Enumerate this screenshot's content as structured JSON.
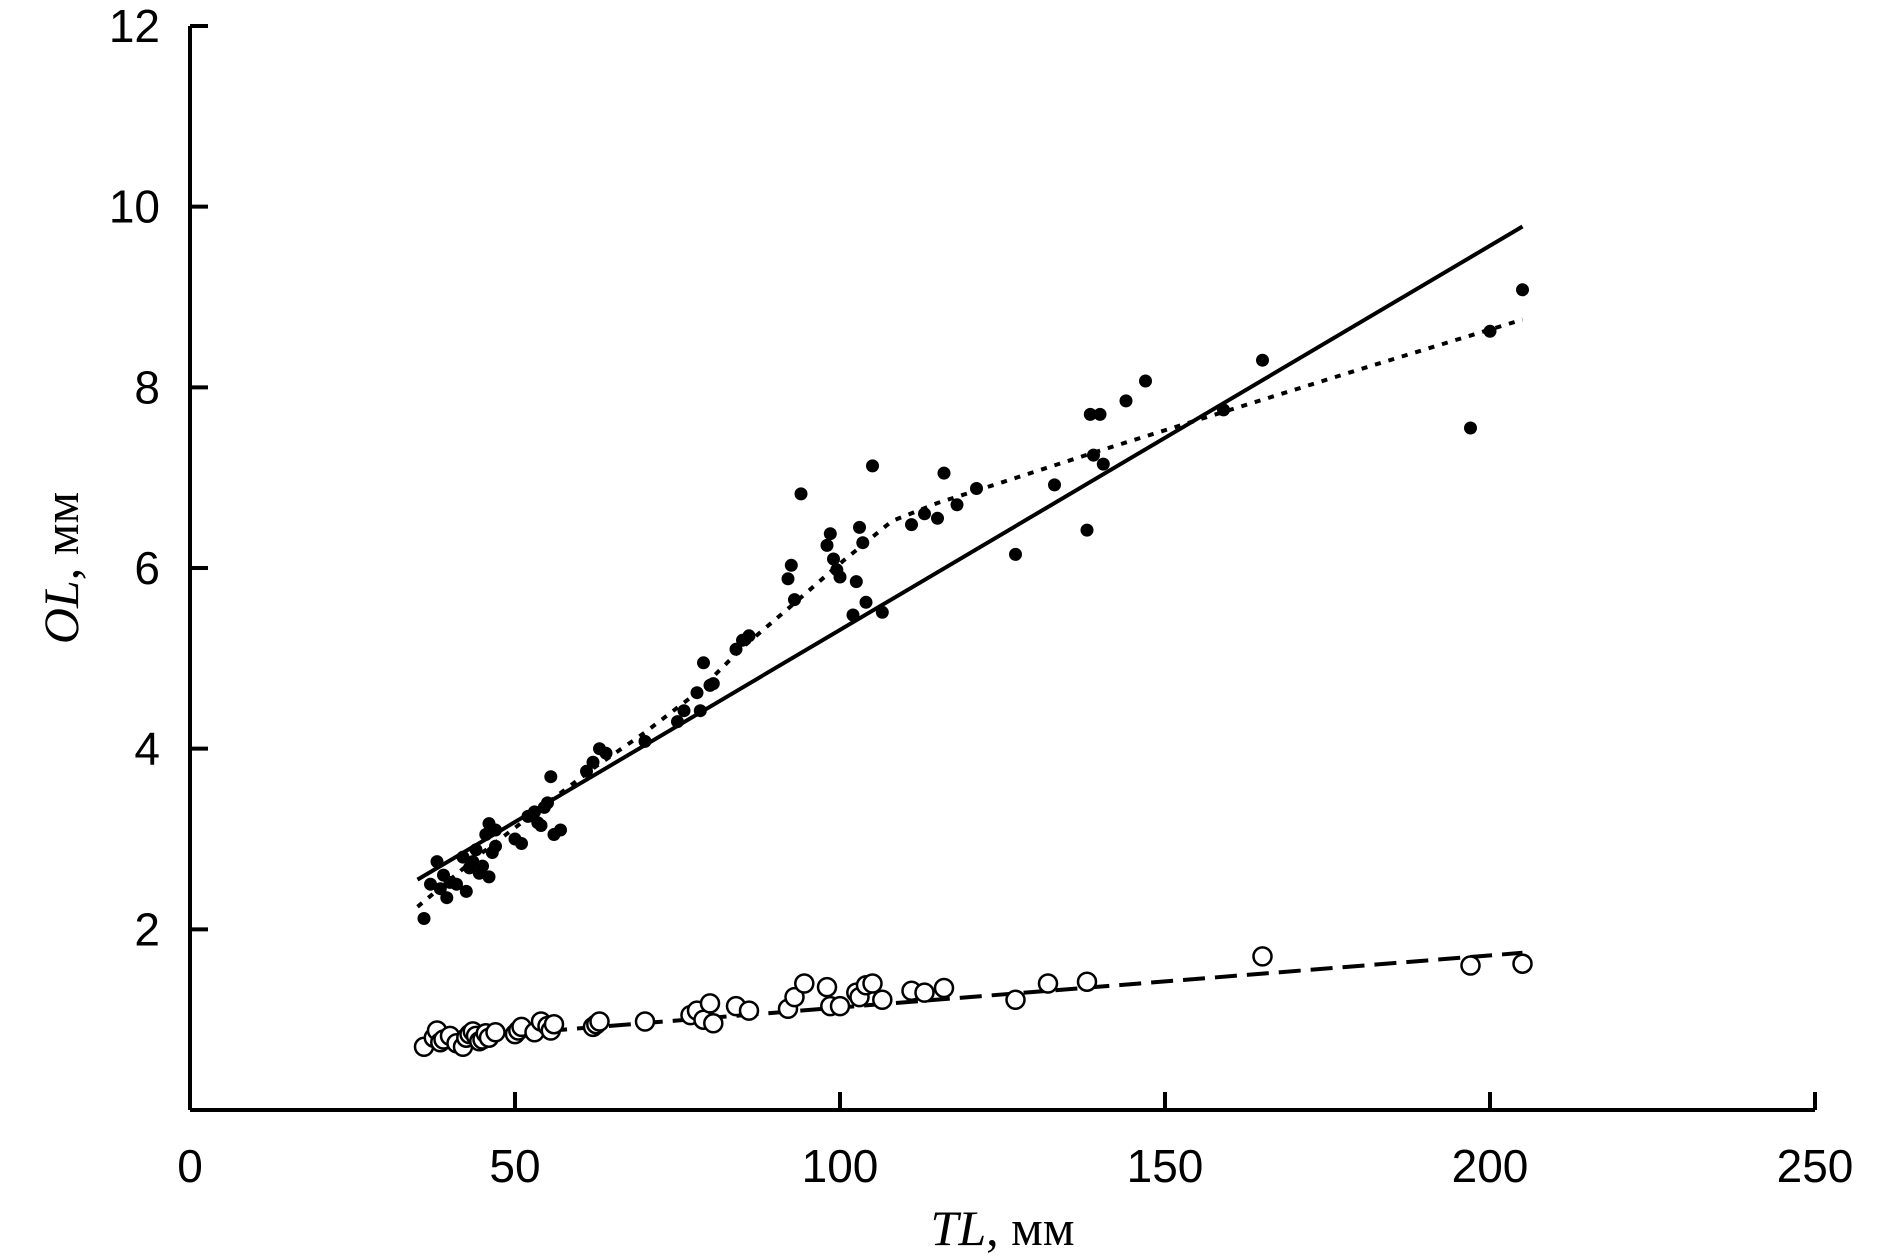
{
  "chart_data": {
    "type": "scatter",
    "xlabel": {
      "var": "TL",
      "unit": ", мм"
    },
    "ylabel": {
      "var": "OL",
      "unit": ", мм"
    },
    "xlim": [
      0,
      250
    ],
    "ylim": [
      0,
      12
    ],
    "xticks": [
      0,
      50,
      100,
      150,
      200,
      250
    ],
    "yticks": [
      2,
      4,
      6,
      8,
      10,
      12
    ],
    "grid": false,
    "series": [
      {
        "marker": "filled-circle",
        "x": [
          36,
          37,
          38,
          38.5,
          39,
          39.5,
          40,
          41,
          42,
          42.5,
          43,
          43.5,
          44,
          44.5,
          45,
          45.5,
          46,
          46,
          46.5,
          47,
          47,
          50,
          51,
          52,
          53,
          53.5,
          54,
          54.5,
          55,
          55.5,
          56,
          57,
          61,
          62,
          63,
          64,
          70,
          75,
          76,
          78,
          78.5,
          79,
          80,
          80.5,
          84,
          85,
          86,
          92,
          92.5,
          93,
          94,
          98,
          98.5,
          99,
          99.5,
          100,
          102,
          102.5,
          103,
          103.5,
          104,
          105,
          106.5,
          111,
          113,
          115,
          116,
          118,
          121,
          127,
          133,
          138,
          138.5,
          139,
          140,
          140.5,
          144,
          147,
          159,
          165,
          197,
          200,
          205
        ],
        "y": [
          2.12,
          2.5,
          2.75,
          2.45,
          2.6,
          2.35,
          2.52,
          2.5,
          2.8,
          2.42,
          2.68,
          2.75,
          2.88,
          2.62,
          2.7,
          3.05,
          2.58,
          3.17,
          2.85,
          2.92,
          3.1,
          3.0,
          2.95,
          3.25,
          3.3,
          3.18,
          3.15,
          3.35,
          3.4,
          3.69,
          3.05,
          3.1,
          3.75,
          3.85,
          4.0,
          3.95,
          4.08,
          4.3,
          4.42,
          4.62,
          4.42,
          4.95,
          4.7,
          4.72,
          5.1,
          5.2,
          5.25,
          5.88,
          6.03,
          5.65,
          6.82,
          6.25,
          6.38,
          6.1,
          5.98,
          5.9,
          5.48,
          5.85,
          6.45,
          6.28,
          5.62,
          7.13,
          5.51,
          6.48,
          6.6,
          6.55,
          7.05,
          6.7,
          6.88,
          6.15,
          6.92,
          6.42,
          7.7,
          7.25,
          7.7,
          7.15,
          7.85,
          8.07,
          7.75,
          8.3,
          7.55,
          8.62,
          9.08
        ]
      },
      {
        "marker": "open-circle",
        "x": [
          36,
          37.5,
          38,
          38.5,
          39,
          40,
          41,
          42,
          42.5,
          43,
          43.5,
          44,
          44.5,
          45,
          45.5,
          46,
          47,
          50,
          50.5,
          51,
          53,
          54,
          55,
          55.5,
          56,
          62,
          62.5,
          63,
          70,
          77,
          78,
          79,
          80,
          80.5,
          84,
          86,
          92,
          93,
          94.5,
          98,
          98.5,
          100,
          102.5,
          103,
          104,
          105,
          106.5,
          111,
          113,
          116,
          127,
          132,
          138,
          165,
          197,
          205
        ],
        "y": [
          0.7,
          0.8,
          0.88,
          0.75,
          0.78,
          0.82,
          0.74,
          0.7,
          0.8,
          0.84,
          0.87,
          0.82,
          0.76,
          0.78,
          0.85,
          0.8,
          0.86,
          0.84,
          0.88,
          0.92,
          0.86,
          0.98,
          0.93,
          0.88,
          0.95,
          0.92,
          0.95,
          0.98,
          0.98,
          1.05,
          1.1,
          1.0,
          1.18,
          0.96,
          1.15,
          1.1,
          1.12,
          1.25,
          1.4,
          1.36,
          1.15,
          1.15,
          1.3,
          1.25,
          1.38,
          1.4,
          1.22,
          1.32,
          1.3,
          1.35,
          1.22,
          1.4,
          1.42,
          1.7,
          1.6,
          1.62
        ]
      }
    ],
    "fits": [
      {
        "style": "solid",
        "x": [
          35,
          205
        ],
        "y": [
          2.55,
          9.78
        ]
      },
      {
        "style": "dotted",
        "x": [
          35,
          45,
          55,
          62,
          70,
          78,
          85,
          92,
          100,
          108,
          115,
          125,
          140,
          160,
          180,
          205
        ],
        "y": [
          2.25,
          2.85,
          3.4,
          3.78,
          4.18,
          4.62,
          5.12,
          5.55,
          6.05,
          6.52,
          6.72,
          6.95,
          7.3,
          7.75,
          8.2,
          8.75
        ]
      },
      {
        "style": "dashed",
        "x": [
          35,
          205
        ],
        "y": [
          0.76,
          1.74
        ]
      }
    ]
  }
}
